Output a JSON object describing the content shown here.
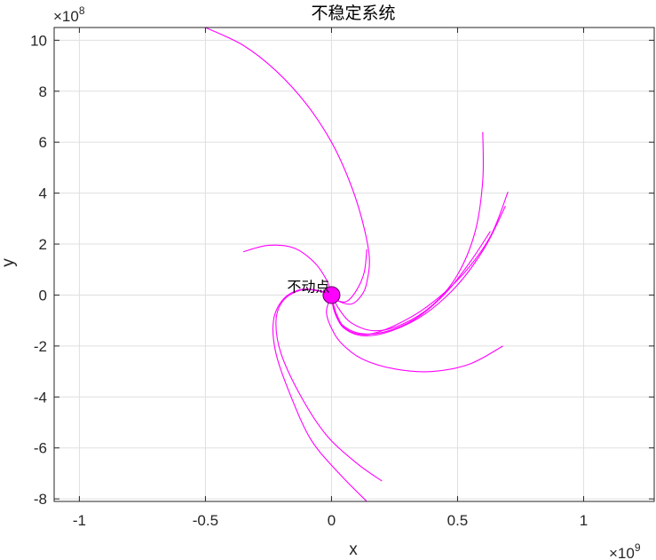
{
  "chart_data": {
    "type": "line",
    "title": "不稳定系统",
    "xlabel": "x",
    "ylabel": "y",
    "x_exponent_label": "×10",
    "x_exponent": "9",
    "y_exponent_label": "×10",
    "y_exponent": "8",
    "x_scale": 1000000000,
    "y_scale": 100000000,
    "xlim": [
      -1.1,
      1.28
    ],
    "ylim": [
      -8.1,
      10.5
    ],
    "x_ticks": [
      -1,
      -0.5,
      0,
      0.5,
      1
    ],
    "x_tick_labels": [
      "-1",
      "-0.5",
      "0",
      "0.5",
      "1"
    ],
    "y_ticks": [
      -8,
      -6,
      -4,
      -2,
      0,
      2,
      4,
      6,
      8,
      10
    ],
    "y_tick_labels": [
      "-8",
      "-6",
      "-4",
      "-2",
      "0",
      "2",
      "4",
      "6",
      "8",
      "10"
    ],
    "grid": true,
    "line_color": "#ff00ff",
    "fixed_point": {
      "x": 0,
      "y": 0,
      "label": "不动点",
      "color": "#ff00ff"
    },
    "series": [
      {
        "x": [
          -0.5,
          -0.35,
          -0.22,
          -0.1,
          0.0,
          0.07,
          0.12,
          0.15,
          0.14,
          0.12,
          0.08,
          0.03,
          0.0
        ],
        "y": [
          10.5,
          9.8,
          8.8,
          7.5,
          6.0,
          4.5,
          3.0,
          1.5,
          0.5,
          0.0,
          -0.35,
          -0.25,
          0.0
        ]
      },
      {
        "x": [
          0.6,
          0.6,
          0.57,
          0.5,
          0.4,
          0.28,
          0.17,
          0.08,
          0.03,
          0.0
        ],
        "y": [
          6.4,
          4.5,
          2.5,
          0.8,
          -0.4,
          -1.15,
          -1.4,
          -1.1,
          -0.55,
          0.0
        ]
      },
      {
        "x": [
          0.7,
          0.63,
          0.52,
          0.38,
          0.25,
          0.14,
          0.06,
          0.02,
          0.0
        ],
        "y": [
          4.05,
          2.3,
          0.8,
          -0.45,
          -1.2,
          -1.55,
          -1.35,
          -0.75,
          0.0
        ]
      },
      {
        "x": [
          0.69,
          0.61,
          0.5,
          0.37,
          0.24,
          0.13,
          0.05,
          0.015,
          0.0
        ],
        "y": [
          3.5,
          1.9,
          0.4,
          -0.75,
          -1.4,
          -1.6,
          -1.3,
          -0.7,
          0.0
        ]
      },
      {
        "x": [
          0.63,
          0.55,
          0.45,
          0.33,
          0.21,
          0.11,
          0.04,
          0.01,
          0.0
        ],
        "y": [
          2.5,
          1.3,
          0.05,
          -0.95,
          -1.45,
          -1.5,
          -1.15,
          -0.6,
          0.0
        ]
      },
      {
        "x": [
          0.68,
          0.55,
          0.4,
          0.25,
          0.12,
          0.04,
          0.0,
          -0.02,
          -0.01,
          0.0
        ],
        "y": [
          -2.0,
          -2.7,
          -3.0,
          -2.9,
          -2.5,
          -1.9,
          -1.3,
          -0.7,
          -0.25,
          0.0
        ]
      },
      {
        "x": [
          -0.35,
          -0.25,
          -0.15,
          -0.07,
          -0.02,
          0.0
        ],
        "y": [
          1.7,
          1.95,
          1.85,
          1.3,
          0.6,
          0.0
        ]
      },
      {
        "x": [
          0.14,
          0.13,
          0.1,
          0.06,
          0.02,
          0.0
        ],
        "y": [
          1.8,
          0.9,
          0.2,
          -0.25,
          -0.2,
          0.0
        ]
      },
      {
        "x": [
          0.2,
          0.1,
          -0.02,
          -0.12,
          -0.2,
          -0.22,
          -0.19,
          -0.12,
          -0.05,
          0.0
        ],
        "y": [
          -7.3,
          -6.6,
          -5.5,
          -4.0,
          -2.3,
          -1.0,
          -0.2,
          0.2,
          0.18,
          0.0
        ]
      },
      {
        "x": [
          0.14,
          0.03,
          -0.08,
          -0.16,
          -0.22,
          -0.23,
          -0.19,
          -0.12,
          -0.05,
          0.0
        ],
        "y": [
          -8.1,
          -7.0,
          -5.7,
          -4.0,
          -2.3,
          -1.0,
          -0.15,
          0.22,
          0.15,
          0.0
        ]
      }
    ]
  }
}
